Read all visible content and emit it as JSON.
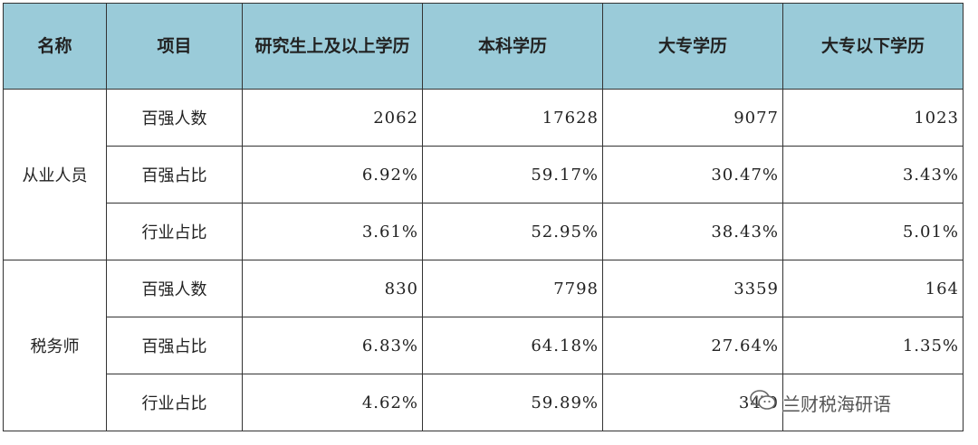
{
  "colors": {
    "header_bg": "#9acbd9",
    "border": "#333333"
  },
  "table": {
    "headers": [
      "名称",
      "项目",
      "研究生上及以上学历",
      "本科学历",
      "大专学历",
      "大专以下学历"
    ],
    "groups": [
      {
        "name": "从业人员",
        "rows": [
          {
            "item": "百强人数",
            "values": [
              "2062",
              "17628",
              "9077",
              "1023"
            ]
          },
          {
            "item": "百强占比",
            "values": [
              "6.92%",
              "59.17%",
              "30.47%",
              "3.43%"
            ]
          },
          {
            "item": "行业占比",
            "values": [
              "3.61%",
              "52.95%",
              "38.43%",
              "5.01%"
            ]
          }
        ]
      },
      {
        "name": "税务师",
        "rows": [
          {
            "item": "百强人数",
            "values": [
              "830",
              "7798",
              "3359",
              "164"
            ]
          },
          {
            "item": "百强占比",
            "values": [
              "6.83%",
              "64.18%",
              "27.64%",
              "1.35%"
            ]
          },
          {
            "item": "行业占比",
            "values": [
              "4.62%",
              "59.89%",
              "34.0",
              ""
            ]
          }
        ]
      }
    ]
  },
  "watermark": {
    "text": "兰财税海研语",
    "icon": "wechat-icon"
  }
}
